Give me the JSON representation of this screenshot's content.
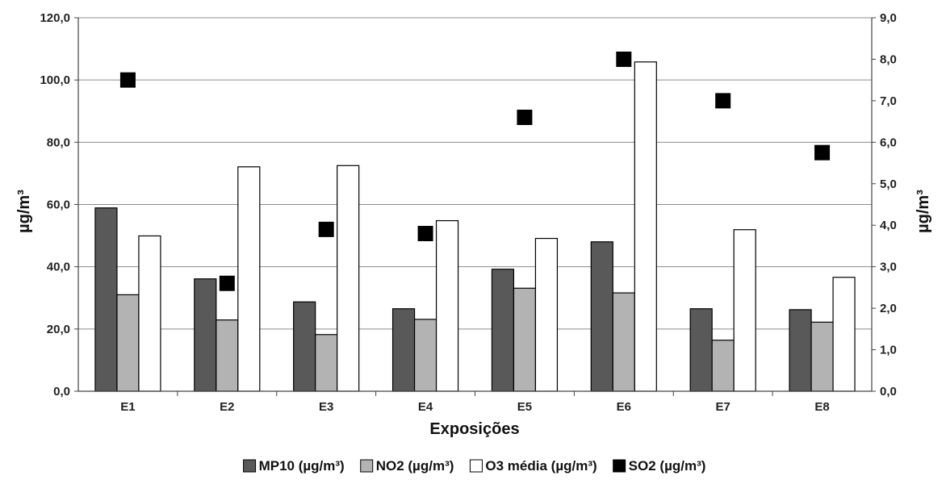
{
  "chart_data": {
    "type": "bar",
    "categories": [
      "E1",
      "E2",
      "E3",
      "E4",
      "E5",
      "E6",
      "E7",
      "E8"
    ],
    "series": [
      {
        "name": "MP10 (µg/m³)",
        "axis": "left",
        "kind": "bar",
        "color": "#595959",
        "values": [
          58.9,
          36.1,
          28.7,
          26.5,
          39.2,
          48.0,
          26.5,
          26.2
        ]
      },
      {
        "name": "NO2 (µg/m³)",
        "axis": "left",
        "kind": "bar",
        "color": "#b3b3b3",
        "values": [
          31.0,
          22.9,
          18.2,
          23.1,
          33.1,
          31.6,
          16.4,
          22.2
        ]
      },
      {
        "name": "O3 média (µg/m³)",
        "axis": "left",
        "kind": "bar",
        "color": "#ffffff",
        "values": [
          49.9,
          72.1,
          72.5,
          54.8,
          49.1,
          105.8,
          51.9,
          36.6
        ]
      },
      {
        "name": "SO2 (µg/m³)",
        "axis": "right",
        "kind": "scatter",
        "color": "#000000",
        "values": [
          7.5,
          2.6,
          3.9,
          3.8,
          6.6,
          8.0,
          7.0,
          5.75
        ]
      }
    ],
    "xlabel": "Exposições",
    "ylabel": "µg/m³",
    "y2label": "µg/m³",
    "ylim": [
      0,
      120
    ],
    "y2lim": [
      0,
      9
    ],
    "yticks": [
      "0,0",
      "20,0",
      "40,0",
      "60,0",
      "80,0",
      "100,0",
      "120,0"
    ],
    "y2ticks": [
      "0,0",
      "1,0",
      "2,0",
      "3,0",
      "4,0",
      "5,0",
      "6,0",
      "7,0",
      "8,0",
      "9,0"
    ],
    "grid": true,
    "legend_position": "bottom"
  }
}
